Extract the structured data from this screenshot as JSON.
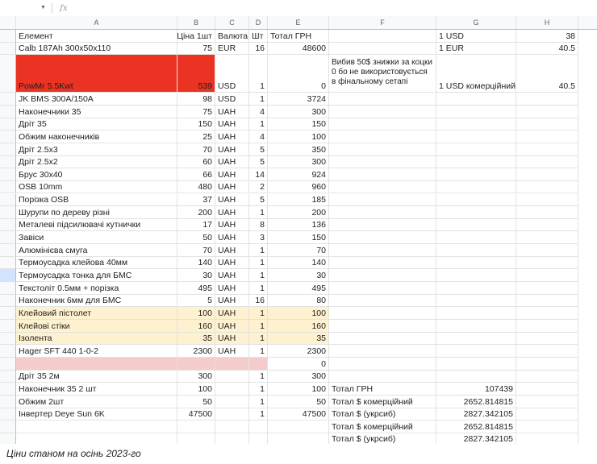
{
  "formula_bar": {
    "name_box": "",
    "fx": "fx"
  },
  "columns": [
    "A",
    "B",
    "C",
    "D",
    "E",
    "F",
    "G",
    "H"
  ],
  "header": {
    "a": "Елемент",
    "b": "Ціна 1шт",
    "c": "Валюта",
    "d": "Шт",
    "e": "Тотал ГРН"
  },
  "items": [
    {
      "name": "Calb 187Ah 300x50x110",
      "price": "75",
      "cur": "EUR",
      "qty": "16",
      "total": "48600"
    },
    {
      "name": "PowMr 5.5Kwt",
      "price": "539",
      "cur": "USD",
      "qty": "1",
      "total": "0"
    },
    {
      "name": "JK BMS 300A/150A",
      "price": "98",
      "cur": "USD",
      "qty": "1",
      "total": "3724"
    },
    {
      "name": "Наконечники 35",
      "price": "75",
      "cur": "UAH",
      "qty": "4",
      "total": "300"
    },
    {
      "name": "Дріт 35",
      "price": "150",
      "cur": "UAH",
      "qty": "1",
      "total": "150"
    },
    {
      "name": "Обжим наконечників",
      "price": "25",
      "cur": "UAH",
      "qty": "4",
      "total": "100"
    },
    {
      "name": "Дріт 2.5x3",
      "price": "70",
      "cur": "UAH",
      "qty": "5",
      "total": "350"
    },
    {
      "name": "Дріт 2.5x2",
      "price": "60",
      "cur": "UAH",
      "qty": "5",
      "total": "300"
    },
    {
      "name": "Брус 30x40",
      "price": "66",
      "cur": "UAH",
      "qty": "14",
      "total": "924"
    },
    {
      "name": "OSB 10mm",
      "price": "480",
      "cur": "UAH",
      "qty": "2",
      "total": "960"
    },
    {
      "name": "Порізка OSB",
      "price": "37",
      "cur": "UAH",
      "qty": "5",
      "total": "185"
    },
    {
      "name": "Шурупи по дереву різні",
      "price": "200",
      "cur": "UAH",
      "qty": "1",
      "total": "200"
    },
    {
      "name": "Металеві підсилювачі кутнички",
      "price": "17",
      "cur": "UAH",
      "qty": "8",
      "total": "136"
    },
    {
      "name": "Завіси",
      "price": "50",
      "cur": "UAH",
      "qty": "3",
      "total": "150"
    },
    {
      "name": "Алюмінієва смуга",
      "price": "70",
      "cur": "UAH",
      "qty": "1",
      "total": "70"
    },
    {
      "name": "Термоусадка клейова 40мм",
      "price": "140",
      "cur": "UAH",
      "qty": "1",
      "total": "140"
    },
    {
      "name": "Термоусадка тонка для БМС",
      "price": "30",
      "cur": "UAH",
      "qty": "1",
      "total": "30"
    },
    {
      "name": "Текстоліт 0.5мм + порізка",
      "price": "495",
      "cur": "UAH",
      "qty": "1",
      "total": "495"
    },
    {
      "name": "Наконечник 6мм для БМС",
      "price": "5",
      "cur": "UAH",
      "qty": "16",
      "total": "80"
    },
    {
      "name": "Клейовий пістолет",
      "price": "100",
      "cur": "UAH",
      "qty": "1",
      "total": "100"
    },
    {
      "name": "Клейові стіки",
      "price": "160",
      "cur": "UAH",
      "qty": "1",
      "total": "160"
    },
    {
      "name": "Ізолента",
      "price": "35",
      "cur": "UAH",
      "qty": "1",
      "total": "35"
    },
    {
      "name": "Hager SFT 440 1-0-2",
      "price": "2300",
      "cur": "UAH",
      "qty": "1",
      "total": "2300"
    },
    {
      "name": "",
      "price": "",
      "cur": "",
      "qty": "",
      "total": "0"
    },
    {
      "name": "Дріт 35 2м",
      "price": "300",
      "cur": "",
      "qty": "1",
      "total": "300"
    },
    {
      "name": "Наконечник 35 2 шт",
      "price": "100",
      "cur": "",
      "qty": "1",
      "total": "100"
    },
    {
      "name": "Обжим 2шт",
      "price": "50",
      "cur": "",
      "qty": "1",
      "total": "50"
    },
    {
      "name": "Інвертер Deye Sun 6K",
      "price": "47500",
      "cur": "",
      "qty": "1",
      "total": "47500"
    }
  ],
  "rates": [
    {
      "label": "1 USD",
      "value": "38"
    },
    {
      "label": "1 EUR",
      "value": "40.5"
    },
    {
      "label": "1 USD комерційний",
      "value": "40.5"
    }
  ],
  "note": "Вибив 50$ знижки за коцки 0 бо не використовується в фінальному сетапі",
  "totals": [
    {
      "label": "Тотал ГРН",
      "value": "107439"
    },
    {
      "label": "Тотал $ комерційний",
      "value": "2652.814815"
    },
    {
      "label": "Тотал $ (укрсиб)",
      "value": "2827.342105"
    }
  ],
  "caption": "Ціни станом на осінь 2023-го",
  "colors": {
    "red_highlight": "#ea3323",
    "yellow_highlight": "#fdf1cf",
    "pink_highlight": "#f4cccc"
  }
}
